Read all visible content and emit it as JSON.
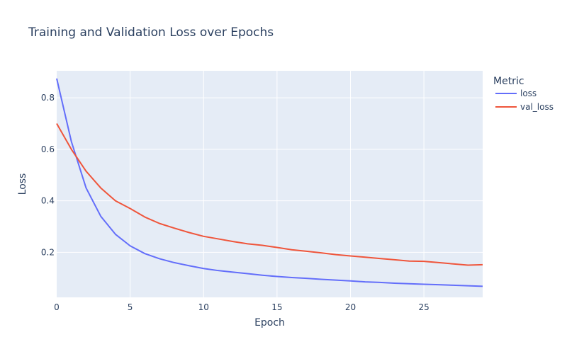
{
  "chart_data": {
    "type": "line",
    "title": "Training and Validation Loss over Epochs",
    "xlabel": "Epoch",
    "ylabel": "Loss",
    "xlim": [
      0,
      29
    ],
    "ylim": [
      0.025,
      0.905
    ],
    "xticks": [
      0,
      5,
      10,
      15,
      20,
      25
    ],
    "yticks": [
      0.2,
      0.4,
      0.6,
      0.8
    ],
    "grid": true,
    "legend": {
      "title": "Metric",
      "placement": "right"
    },
    "x": [
      0,
      1,
      2,
      3,
      4,
      5,
      6,
      7,
      8,
      9,
      10,
      11,
      12,
      13,
      14,
      15,
      16,
      17,
      18,
      19,
      20,
      21,
      22,
      23,
      24,
      25,
      26,
      27,
      28,
      29
    ],
    "series": [
      {
        "name": "loss",
        "color": "#636efa",
        "values": [
          0.875,
          0.63,
          0.45,
          0.34,
          0.27,
          0.225,
          0.195,
          0.175,
          0.16,
          0.148,
          0.137,
          0.129,
          0.123,
          0.117,
          0.111,
          0.106,
          0.102,
          0.099,
          0.095,
          0.092,
          0.089,
          0.085,
          0.083,
          0.08,
          0.078,
          0.076,
          0.074,
          0.072,
          0.07,
          0.068
        ]
      },
      {
        "name": "val_loss",
        "color": "#ef553b",
        "values": [
          0.7,
          0.6,
          0.515,
          0.45,
          0.4,
          0.37,
          0.337,
          0.312,
          0.294,
          0.277,
          0.262,
          0.252,
          0.242,
          0.233,
          0.227,
          0.219,
          0.21,
          0.204,
          0.198,
          0.191,
          0.186,
          0.181,
          0.176,
          0.171,
          0.166,
          0.165,
          0.16,
          0.155,
          0.15,
          0.152
        ]
      }
    ]
  }
}
